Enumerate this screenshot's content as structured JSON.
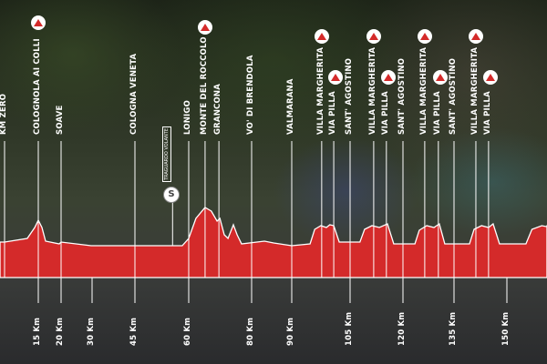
{
  "colors": {
    "profile": "#d42a2a",
    "line": "#ffffff"
  },
  "chart_data": {
    "type": "area",
    "title": "",
    "xlabel": "",
    "ylabel": "",
    "x_unit": "Km",
    "tick_labels": [
      "15 Km",
      "20 Km",
      "30 Km",
      "45 Km",
      "60 Km",
      "80 Km",
      "90 Km",
      "105 Km",
      "120 Km",
      "135 Km",
      "150 Km"
    ],
    "ticks_km": [
      15,
      20,
      30,
      45,
      60,
      80,
      90,
      105,
      120,
      135,
      150
    ],
    "profile": {
      "km": [
        0,
        10.1,
        13.4,
        15,
        15.8,
        16.6,
        19.6,
        20,
        29.7,
        58.2,
        60,
        62.3,
        65.2,
        67.2,
        69,
        69.9,
        71.3,
        72.5,
        74.2,
        75.4,
        76.8,
        83.2,
        85.5,
        90,
        94.7,
        95.9,
        97.5,
        98.9,
        99.8,
        100.8,
        102.2,
        107.8,
        109.1,
        111.2,
        113.3,
        115.6,
        117.4,
        123.5,
        124.8,
        127,
        129.1,
        130.7,
        132.3,
        139.4,
        140.7,
        142.8,
        144.8,
        146.1,
        147.9,
        154.1,
        155.4,
        157.5,
        159.5,
        161.3
      ],
      "elevation": [
        156,
        172,
        220,
        252,
        220,
        160,
        148,
        156,
        140,
        140,
        172,
        260,
        308,
        292,
        248,
        260,
        188,
        172,
        232,
        188,
        148,
        160,
        152,
        140,
        148,
        212,
        228,
        220,
        232,
        228,
        156,
        156,
        212,
        228,
        220,
        236,
        148,
        148,
        208,
        228,
        220,
        236,
        148,
        148,
        212,
        228,
        220,
        236,
        148,
        148,
        212,
        228,
        220,
        228
      ]
    },
    "places": [
      {
        "name": "KM ZERO",
        "km": 0,
        "kom": false
      },
      {
        "name": "COLOGNOLA AI COLLI",
        "km": 15,
        "kom": true
      },
      {
        "name": "SOAVE",
        "km": 20,
        "kom": false
      },
      {
        "name": "COLOGNA VENETA",
        "km": 45,
        "kom": false
      },
      {
        "name": "LONIGO",
        "km": 60,
        "kom": false
      },
      {
        "name": "MONTE DEL ROCCOLO",
        "km": 65.2,
        "kom": true
      },
      {
        "name": "GRANCONA",
        "km": 69.6,
        "kom": false
      },
      {
        "name": "VO' DI BRENDOLA",
        "km": 80,
        "kom": false
      },
      {
        "name": "VALMARANA",
        "km": 90,
        "kom": false
      },
      {
        "name": "VILLA MARGHERITA",
        "km": 97.7,
        "kom": true
      },
      {
        "name": "VIA PILLA",
        "km": 100.8,
        "kom": true
      },
      {
        "name": "SANT' AGOSTINO",
        "km": 105,
        "kom": false
      },
      {
        "name": "VILLA MARGHERITA",
        "km": 111.7,
        "kom": true
      },
      {
        "name": "VIA PILLA",
        "km": 115.3,
        "kom": true
      },
      {
        "name": "SANT' AGOSTINO",
        "km": 120,
        "kom": false
      },
      {
        "name": "VILLA MARGHERITA",
        "km": 126.4,
        "kom": true
      },
      {
        "name": "VIA PILLA",
        "km": 130.4,
        "kom": true
      },
      {
        "name": "SANT' AGOSTINO",
        "km": 135,
        "kom": false
      },
      {
        "name": "VILLA MARGHERITA",
        "km": 141.2,
        "kom": true
      },
      {
        "name": "VIA PILLA",
        "km": 144.8,
        "kom": true
      }
    ],
    "sprint": {
      "label": "TRAGUARDO VOLANTE",
      "icon_letter": "S",
      "km": 55.5
    }
  }
}
